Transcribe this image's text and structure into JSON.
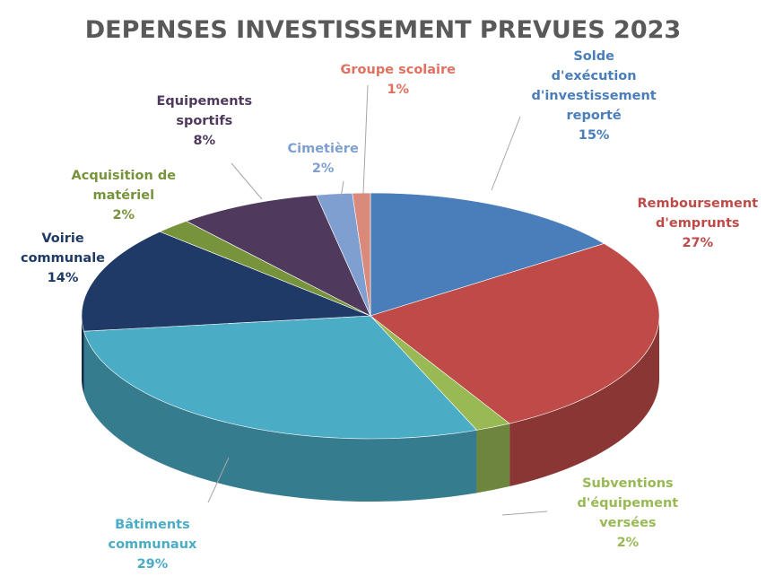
{
  "chart_data": {
    "type": "pie",
    "title": "DEPENSES INVESTISSEMENT PREVUES 2023",
    "slices": [
      {
        "label": "Solde d'exécution d'investissement reporté",
        "label_lines": [
          "Solde",
          "d'exécution",
          "d'investissement",
          "reporté"
        ],
        "pct_label": "15%",
        "value": 15,
        "color": "#4a7ebb"
      },
      {
        "label": "Remboursement d'emprunts",
        "label_lines": [
          "Remboursement",
          "d'emprunts"
        ],
        "pct_label": "27%",
        "value": 27,
        "color": "#be4b48"
      },
      {
        "label": "Subventions d'équipement versées",
        "label_lines": [
          "Subventions",
          "d'équipement",
          "versées"
        ],
        "pct_label": "2%",
        "value": 2,
        "color": "#98b954"
      },
      {
        "label": "Bâtiments communaux",
        "label_lines": [
          "Bâtiments",
          "communaux"
        ],
        "pct_label": "29%",
        "value": 29,
        "color": "#4bacc6"
      },
      {
        "label": "Voirie communale",
        "label_lines": [
          "Voirie",
          "communale"
        ],
        "pct_label": "14%",
        "value": 14,
        "color": "#1f3a66"
      },
      {
        "label": "Acquisition de matériel",
        "label_lines": [
          "Acquisition de",
          "matériel"
        ],
        "pct_label": "2%",
        "value": 2,
        "color": "#77933c"
      },
      {
        "label": "Equipements sportifs",
        "label_lines": [
          "Equipements",
          "sportifs"
        ],
        "pct_label": "8%",
        "value": 8,
        "color": "#4f3a5e"
      },
      {
        "label": "Cimetière",
        "label_lines": [
          "Cimetière"
        ],
        "pct_label": "2%",
        "value": 2,
        "color": "#7e9fd0"
      },
      {
        "label": "Groupe scolaire",
        "label_lines": [
          "Groupe scolaire"
        ],
        "pct_label": "1%",
        "value": 1,
        "color": "#d98a7a"
      }
    ],
    "label_colors": [
      "#4a7ebb",
      "#be4b48",
      "#98b954",
      "#4bacc6",
      "#1f3a66",
      "#77933c",
      "#4f3a5e",
      "#7e9fd0",
      "#e07060"
    ]
  }
}
